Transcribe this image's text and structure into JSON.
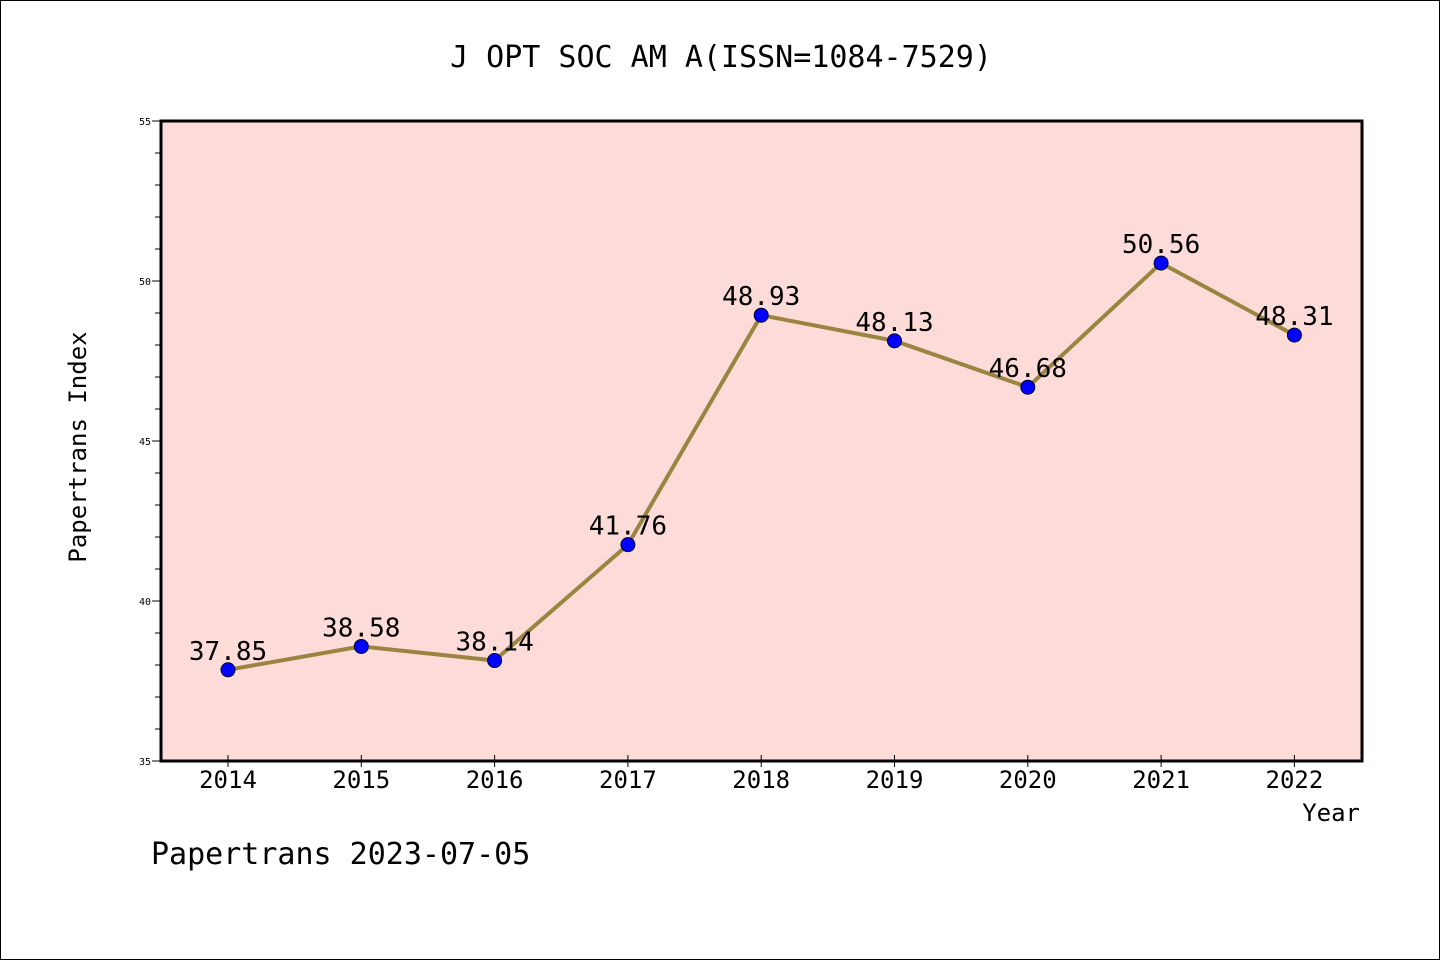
{
  "chart_data": {
    "type": "line",
    "title": "J OPT SOC AM A(ISSN=1084-7529)",
    "xlabel": "Year",
    "ylabel": "Papertrans Index",
    "footer": "Papertrans 2023-07-05",
    "categories": [
      "2014",
      "2015",
      "2016",
      "2017",
      "2018",
      "2019",
      "2020",
      "2021",
      "2022"
    ],
    "values": [
      37.85,
      38.58,
      38.14,
      41.76,
      48.93,
      48.13,
      46.68,
      50.56,
      48.31
    ],
    "data_labels": [
      "37.85",
      "38.58",
      "38.14",
      "41.76",
      "48.93",
      "48.13",
      "46.68",
      "50.56",
      "48.31"
    ],
    "ylim": [
      35,
      55
    ],
    "yticks": [
      "35",
      "40",
      "45",
      "50",
      "55"
    ],
    "grid": false,
    "colors": {
      "plot_background": "#fddbd8",
      "line": "#9b8440",
      "marker": "#0000ff",
      "axes": "#000000"
    }
  }
}
